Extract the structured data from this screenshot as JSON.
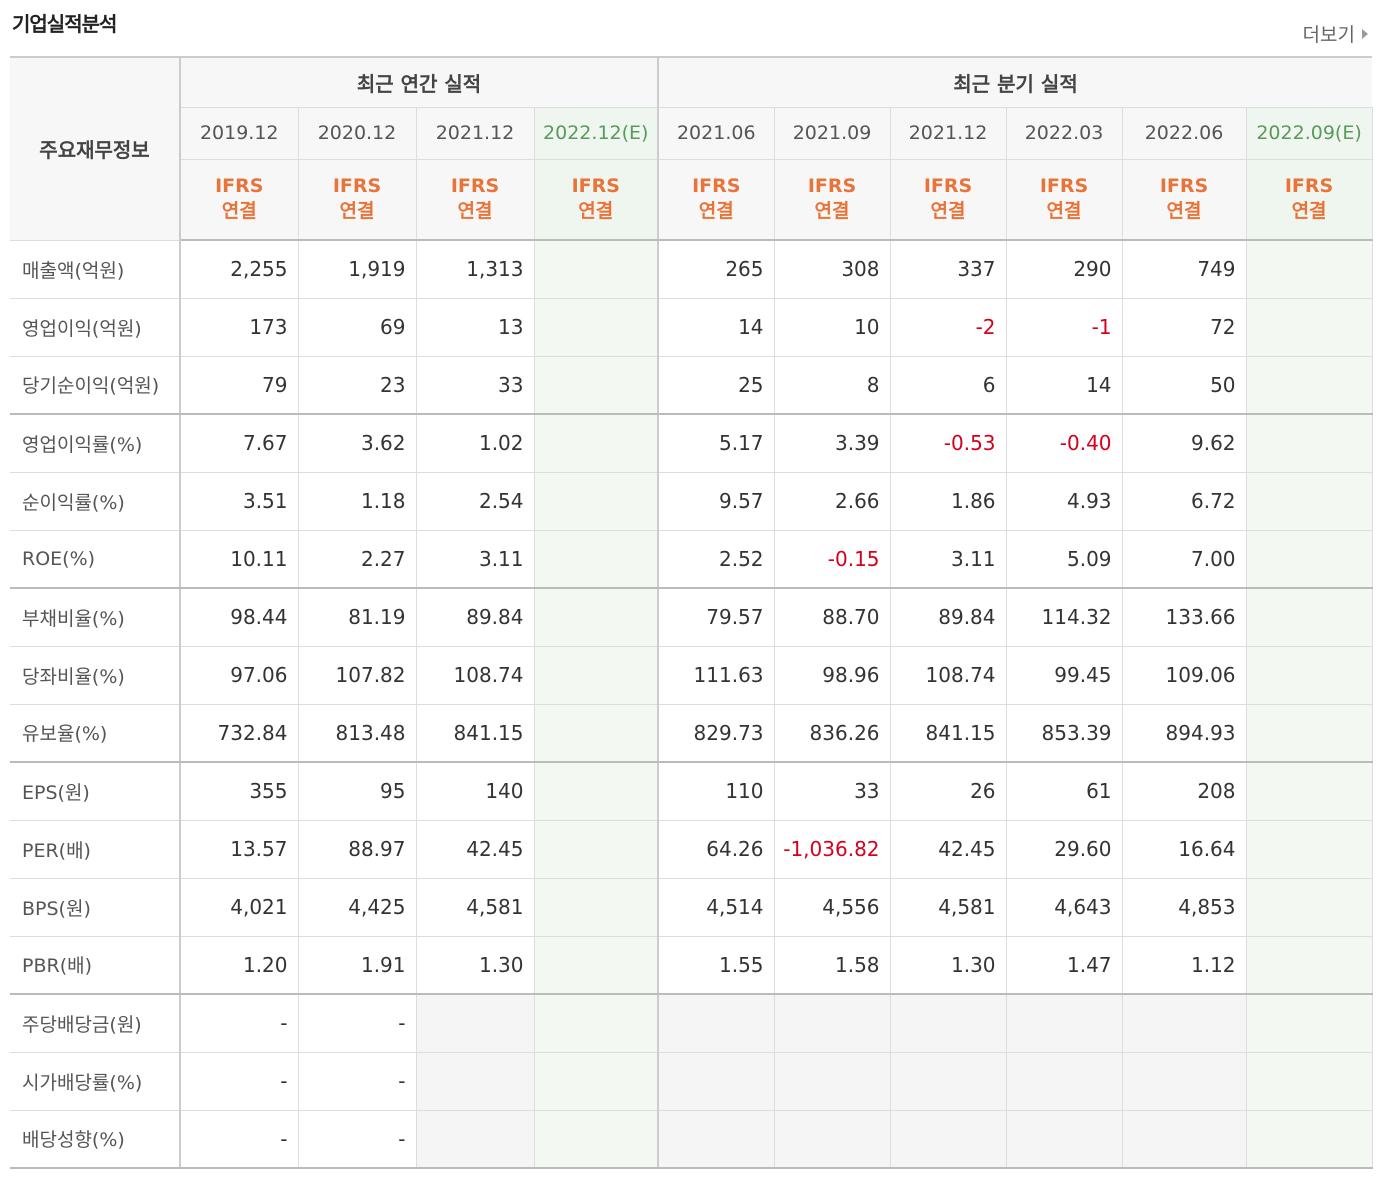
{
  "section_title": "기업실적분석",
  "more_label": "더보기",
  "table": {
    "row_header": "주요재무정보",
    "annual_group": "최근 연간 실적",
    "quarter_group": "최근 분기 실적",
    "annual_periods": [
      {
        "date": "2019.12",
        "est": "",
        "std1": "IFRS",
        "std2": "연결"
      },
      {
        "date": "2020.12",
        "est": "",
        "std1": "IFRS",
        "std2": "연결"
      },
      {
        "date": "2021.12",
        "est": "",
        "std1": "IFRS",
        "std2": "연결"
      },
      {
        "date": "2022.12",
        "est": "(E)",
        "std1": "IFRS",
        "std2": "연결"
      }
    ],
    "quarter_periods": [
      {
        "date": "2021.06",
        "est": "",
        "std1": "IFRS",
        "std2": "연결"
      },
      {
        "date": "2021.09",
        "est": "",
        "std1": "IFRS",
        "std2": "연결"
      },
      {
        "date": "2021.12",
        "est": "",
        "std1": "IFRS",
        "std2": "연결"
      },
      {
        "date": "2022.03",
        "est": "",
        "std1": "IFRS",
        "std2": "연결"
      },
      {
        "date": "2022.06",
        "est": "",
        "std1": "IFRS",
        "std2": "연결"
      },
      {
        "date": "2022.09",
        "est": "(E)",
        "std1": "IFRS",
        "std2": "연결"
      }
    ],
    "rows": [
      {
        "label": "매출액(억원)",
        "values": [
          "2,255",
          "1,919",
          "1,313",
          "",
          "265",
          "308",
          "337",
          "290",
          "749",
          ""
        ]
      },
      {
        "label": "영업이익(억원)",
        "values": [
          "173",
          "69",
          "13",
          "",
          "14",
          "10",
          "-2",
          "-1",
          "72",
          ""
        ]
      },
      {
        "label": "당기순이익(억원)",
        "values": [
          "79",
          "23",
          "33",
          "",
          "25",
          "8",
          "6",
          "14",
          "50",
          ""
        ]
      },
      {
        "label": "영업이익률(%)",
        "values": [
          "7.67",
          "3.62",
          "1.02",
          "",
          "5.17",
          "3.39",
          "-0.53",
          "-0.40",
          "9.62",
          ""
        ]
      },
      {
        "label": "순이익률(%)",
        "values": [
          "3.51",
          "1.18",
          "2.54",
          "",
          "9.57",
          "2.66",
          "1.86",
          "4.93",
          "6.72",
          ""
        ]
      },
      {
        "label": "ROE(%)",
        "values": [
          "10.11",
          "2.27",
          "3.11",
          "",
          "2.52",
          "-0.15",
          "3.11",
          "5.09",
          "7.00",
          ""
        ]
      },
      {
        "label": "부채비율(%)",
        "values": [
          "98.44",
          "81.19",
          "89.84",
          "",
          "79.57",
          "88.70",
          "89.84",
          "114.32",
          "133.66",
          ""
        ]
      },
      {
        "label": "당좌비율(%)",
        "values": [
          "97.06",
          "107.82",
          "108.74",
          "",
          "111.63",
          "98.96",
          "108.74",
          "99.45",
          "109.06",
          ""
        ]
      },
      {
        "label": "유보율(%)",
        "values": [
          "732.84",
          "813.48",
          "841.15",
          "",
          "829.73",
          "836.26",
          "841.15",
          "853.39",
          "894.93",
          ""
        ]
      },
      {
        "label": "EPS(원)",
        "values": [
          "355",
          "95",
          "140",
          "",
          "110",
          "33",
          "26",
          "61",
          "208",
          ""
        ]
      },
      {
        "label": "PER(배)",
        "values": [
          "13.57",
          "88.97",
          "42.45",
          "",
          "64.26",
          "-1,036.82",
          "42.45",
          "29.60",
          "16.64",
          ""
        ]
      },
      {
        "label": "BPS(원)",
        "values": [
          "4,021",
          "4,425",
          "4,581",
          "",
          "4,514",
          "4,556",
          "4,581",
          "4,643",
          "4,853",
          ""
        ]
      },
      {
        "label": "PBR(배)",
        "values": [
          "1.20",
          "1.91",
          "1.30",
          "",
          "1.55",
          "1.58",
          "1.30",
          "1.47",
          "1.12",
          ""
        ]
      },
      {
        "label": "주당배당금(원)",
        "values": [
          "-",
          "-",
          "",
          "",
          "",
          "",
          "",
          "",
          "",
          ""
        ]
      },
      {
        "label": "시가배당률(%)",
        "values": [
          "-",
          "-",
          "",
          "",
          "",
          "",
          "",
          "",
          "",
          ""
        ]
      },
      {
        "label": "배당성향(%)",
        "values": [
          "-",
          "-",
          "",
          "",
          "",
          "",
          "",
          "",
          "",
          ""
        ]
      }
    ]
  }
}
